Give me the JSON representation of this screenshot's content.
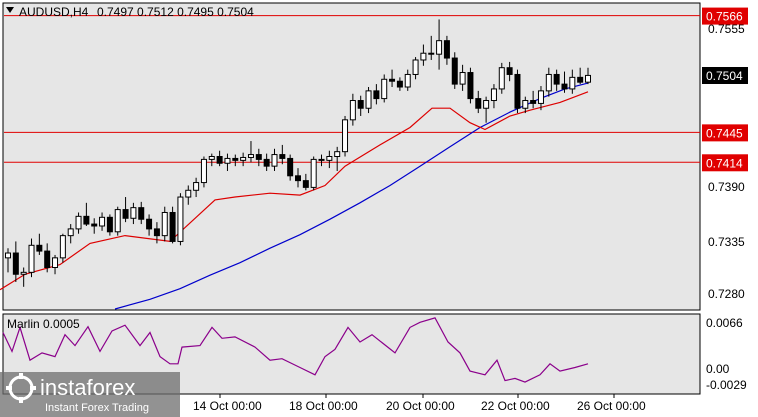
{
  "header": {
    "symbol_timeframe": "AUDUSD,H4",
    "ohlc": "0.7497 0.7512 0.7495 0.7504"
  },
  "colors": {
    "background": "#ffffff",
    "plot_background": "#e6e6e6",
    "candle_up": "#ffffff",
    "candle_down": "#000000",
    "level_line": "#e00000",
    "ma_fast": "#dd0000",
    "ma_slow": "#0000cc",
    "indicator_line": "#8b008b",
    "price_label_bg": "#000000"
  },
  "price_axis": {
    "ticks": [
      "0.7555",
      "0.7390",
      "0.7335",
      "0.7280"
    ],
    "current_price": "0.7504"
  },
  "levels": [
    {
      "price": 0.7566,
      "label": "0.7566"
    },
    {
      "price": 0.7445,
      "label": "0.7445"
    },
    {
      "price": 0.7414,
      "label": "0.7414"
    }
  ],
  "indicator": {
    "name": "Marlin 0.0005",
    "ticks": [
      "0.0066",
      "0.00",
      "-0.0029"
    ]
  },
  "time_axis": {
    "labels": [
      "14 Oct 00:00",
      "18 Oct 00:00",
      "20 Oct 00:00",
      "22 Oct 00:00",
      "26 Oct 00:00"
    ]
  },
  "watermark": {
    "brand": "instaforex",
    "tagline": "Instant Forex Trading"
  },
  "chart_data": {
    "type": "candlestick",
    "symbol": "AUDUSD",
    "timeframe": "H4",
    "ylim": [
      0.7262,
      0.7578
    ],
    "ind_ylim": [
      -0.0035,
      0.0072
    ],
    "candles": [
      [
        0.7315,
        0.7325,
        0.73,
        0.732
      ],
      [
        0.732,
        0.7332,
        0.729,
        0.7298
      ],
      [
        0.7298,
        0.7305,
        0.7285,
        0.73
      ],
      [
        0.73,
        0.7335,
        0.7295,
        0.7328
      ],
      [
        0.7328,
        0.734,
        0.7318,
        0.7322
      ],
      [
        0.7322,
        0.733,
        0.73,
        0.7305
      ],
      [
        0.7305,
        0.7318,
        0.7298,
        0.7315
      ],
      [
        0.7315,
        0.734,
        0.731,
        0.7338
      ],
      [
        0.7338,
        0.735,
        0.733,
        0.7345
      ],
      [
        0.7345,
        0.7362,
        0.734,
        0.7358
      ],
      [
        0.7358,
        0.7372,
        0.7348,
        0.735
      ],
      [
        0.735,
        0.7356,
        0.734,
        0.7348
      ],
      [
        0.7348,
        0.7362,
        0.7343,
        0.7357
      ],
      [
        0.7357,
        0.736,
        0.7338,
        0.7342
      ],
      [
        0.7342,
        0.7368,
        0.7338,
        0.7365
      ],
      [
        0.7365,
        0.7378,
        0.7352,
        0.7356
      ],
      [
        0.7356,
        0.7372,
        0.735,
        0.7367
      ],
      [
        0.7367,
        0.7373,
        0.735,
        0.7355
      ],
      [
        0.7355,
        0.736,
        0.7338,
        0.7345
      ],
      [
        0.7345,
        0.7352,
        0.733,
        0.7338
      ],
      [
        0.7338,
        0.7368,
        0.7332,
        0.7362
      ],
      [
        0.7362,
        0.7368,
        0.733,
        0.7332
      ],
      [
        0.7332,
        0.7382,
        0.7328,
        0.7378
      ],
      [
        0.7378,
        0.739,
        0.737,
        0.7385
      ],
      [
        0.7385,
        0.7398,
        0.7378,
        0.7393
      ],
      [
        0.7393,
        0.742,
        0.7388,
        0.7417
      ],
      [
        0.7417,
        0.7423,
        0.741,
        0.742
      ],
      [
        0.742,
        0.7426,
        0.741,
        0.7413
      ],
      [
        0.7413,
        0.7423,
        0.7405,
        0.7418
      ],
      [
        0.7418,
        0.7422,
        0.741,
        0.7416
      ],
      [
        0.7416,
        0.7424,
        0.741,
        0.7419
      ],
      [
        0.7419,
        0.7436,
        0.7414,
        0.7422
      ],
      [
        0.7422,
        0.7428,
        0.741,
        0.7417
      ],
      [
        0.7417,
        0.7423,
        0.7405,
        0.741
      ],
      [
        0.741,
        0.7428,
        0.7405,
        0.7422
      ],
      [
        0.7422,
        0.7432,
        0.7412,
        0.7418
      ],
      [
        0.7418,
        0.7422,
        0.7395,
        0.74
      ],
      [
        0.74,
        0.7408,
        0.7388,
        0.7395
      ],
      [
        0.7395,
        0.7402,
        0.7385,
        0.7388
      ],
      [
        0.7388,
        0.742,
        0.7385,
        0.7417
      ],
      [
        0.7417,
        0.7422,
        0.741,
        0.7416
      ],
      [
        0.7416,
        0.7426,
        0.7408,
        0.742
      ],
      [
        0.742,
        0.743,
        0.7405,
        0.7425
      ],
      [
        0.7425,
        0.7462,
        0.742,
        0.7458
      ],
      [
        0.7458,
        0.7485,
        0.7452,
        0.7478
      ],
      [
        0.7478,
        0.7483,
        0.7462,
        0.747
      ],
      [
        0.747,
        0.7492,
        0.7465,
        0.7488
      ],
      [
        0.7488,
        0.7495,
        0.7474,
        0.748
      ],
      [
        0.748,
        0.7505,
        0.7476,
        0.75
      ],
      [
        0.75,
        0.751,
        0.7492,
        0.7498
      ],
      [
        0.7498,
        0.7502,
        0.7488,
        0.7492
      ],
      [
        0.7492,
        0.751,
        0.7488,
        0.7505
      ],
      [
        0.7505,
        0.7523,
        0.75,
        0.752
      ],
      [
        0.752,
        0.7536,
        0.7514,
        0.7527
      ],
      [
        0.7527,
        0.7545,
        0.752,
        0.7526
      ],
      [
        0.7526,
        0.7562,
        0.751,
        0.754
      ],
      [
        0.754,
        0.7545,
        0.7515,
        0.7522
      ],
      [
        0.7522,
        0.7528,
        0.749,
        0.7495
      ],
      [
        0.7495,
        0.7515,
        0.7488,
        0.7507
      ],
      [
        0.7507,
        0.7512,
        0.7475,
        0.748
      ],
      [
        0.748,
        0.7488,
        0.7465,
        0.747
      ],
      [
        0.747,
        0.7482,
        0.7455,
        0.7478
      ],
      [
        0.7478,
        0.7495,
        0.747,
        0.749
      ],
      [
        0.749,
        0.7517,
        0.7485,
        0.7512
      ],
      [
        0.7512,
        0.7518,
        0.7498,
        0.7505
      ],
      [
        0.7505,
        0.751,
        0.7465,
        0.747
      ],
      [
        0.747,
        0.7482,
        0.7465,
        0.7478
      ],
      [
        0.7478,
        0.7488,
        0.747,
        0.7475
      ],
      [
        0.7475,
        0.7493,
        0.7468,
        0.7488
      ],
      [
        0.7488,
        0.7512,
        0.7482,
        0.7505
      ],
      [
        0.7505,
        0.751,
        0.7488,
        0.7495
      ],
      [
        0.7495,
        0.7508,
        0.7486,
        0.749
      ],
      [
        0.749,
        0.751,
        0.7485,
        0.7502
      ],
      [
        0.7502,
        0.7512,
        0.7495,
        0.7497
      ],
      [
        0.7497,
        0.7512,
        0.7495,
        0.7504
      ]
    ],
    "ma_fast": [
      [
        0,
        0.7282
      ],
      [
        25,
        0.7298
      ],
      [
        60,
        0.7308
      ],
      [
        90,
        0.733
      ],
      [
        125,
        0.7338
      ],
      [
        170,
        0.7332
      ],
      [
        215,
        0.7375
      ],
      [
        235,
        0.7378
      ],
      [
        270,
        0.7382
      ],
      [
        300,
        0.738
      ],
      [
        325,
        0.739
      ],
      [
        345,
        0.741
      ],
      [
        380,
        0.7432
      ],
      [
        410,
        0.745
      ],
      [
        432,
        0.747
      ],
      [
        450,
        0.747
      ],
      [
        470,
        0.7455
      ],
      [
        485,
        0.7448
      ],
      [
        510,
        0.7462
      ],
      [
        530,
        0.7468
      ],
      [
        560,
        0.7476
      ],
      [
        588,
        0.7487
      ]
    ],
    "ma_slow": [
      [
        115,
        0.7262
      ],
      [
        150,
        0.7272
      ],
      [
        180,
        0.7283
      ],
      [
        210,
        0.7297
      ],
      [
        240,
        0.731
      ],
      [
        270,
        0.7325
      ],
      [
        300,
        0.7339
      ],
      [
        330,
        0.7355
      ],
      [
        360,
        0.7372
      ],
      [
        390,
        0.739
      ],
      [
        420,
        0.741
      ],
      [
        450,
        0.743
      ],
      [
        480,
        0.745
      ],
      [
        510,
        0.7466
      ],
      [
        540,
        0.748
      ],
      [
        565,
        0.749
      ],
      [
        588,
        0.7496
      ]
    ],
    "indicator_series": [
      [
        3,
        0.0048
      ],
      [
        12,
        0.0022
      ],
      [
        20,
        0.0055
      ],
      [
        30,
        0.001
      ],
      [
        42,
        0.002
      ],
      [
        55,
        0.0015
      ],
      [
        65,
        0.0045
      ],
      [
        75,
        0.003
      ],
      [
        88,
        0.0056
      ],
      [
        100,
        0.0022
      ],
      [
        112,
        0.005
      ],
      [
        125,
        0.0058
      ],
      [
        140,
        0.003
      ],
      [
        150,
        0.0048
      ],
      [
        160,
        0.0015
      ],
      [
        170,
        0.0005
      ],
      [
        178,
        0.0005
      ],
      [
        182,
        0.0028
      ],
      [
        200,
        0.003
      ],
      [
        212,
        0.0055
      ],
      [
        222,
        0.004
      ],
      [
        235,
        0.0042
      ],
      [
        255,
        0.0028
      ],
      [
        270,
        0.001
      ],
      [
        282,
        0.0012
      ],
      [
        300,
        0.0
      ],
      [
        315,
        -0.001
      ],
      [
        325,
        0.0015
      ],
      [
        335,
        0.0025
      ],
      [
        348,
        0.0055
      ],
      [
        360,
        0.0035
      ],
      [
        372,
        0.0045
      ],
      [
        395,
        0.002
      ],
      [
        410,
        0.0055
      ],
      [
        420,
        0.0062
      ],
      [
        435,
        0.0068
      ],
      [
        448,
        0.0035
      ],
      [
        460,
        0.002
      ],
      [
        470,
        -0.0005
      ],
      [
        485,
        -0.001
      ],
      [
        497,
        0.001
      ],
      [
        505,
        -0.0018
      ],
      [
        515,
        -0.0015
      ],
      [
        525,
        -0.002
      ],
      [
        540,
        -0.001
      ],
      [
        550,
        0.0005
      ],
      [
        560,
        -0.0005
      ],
      [
        575,
        0.0
      ],
      [
        588,
        0.0005
      ]
    ]
  }
}
